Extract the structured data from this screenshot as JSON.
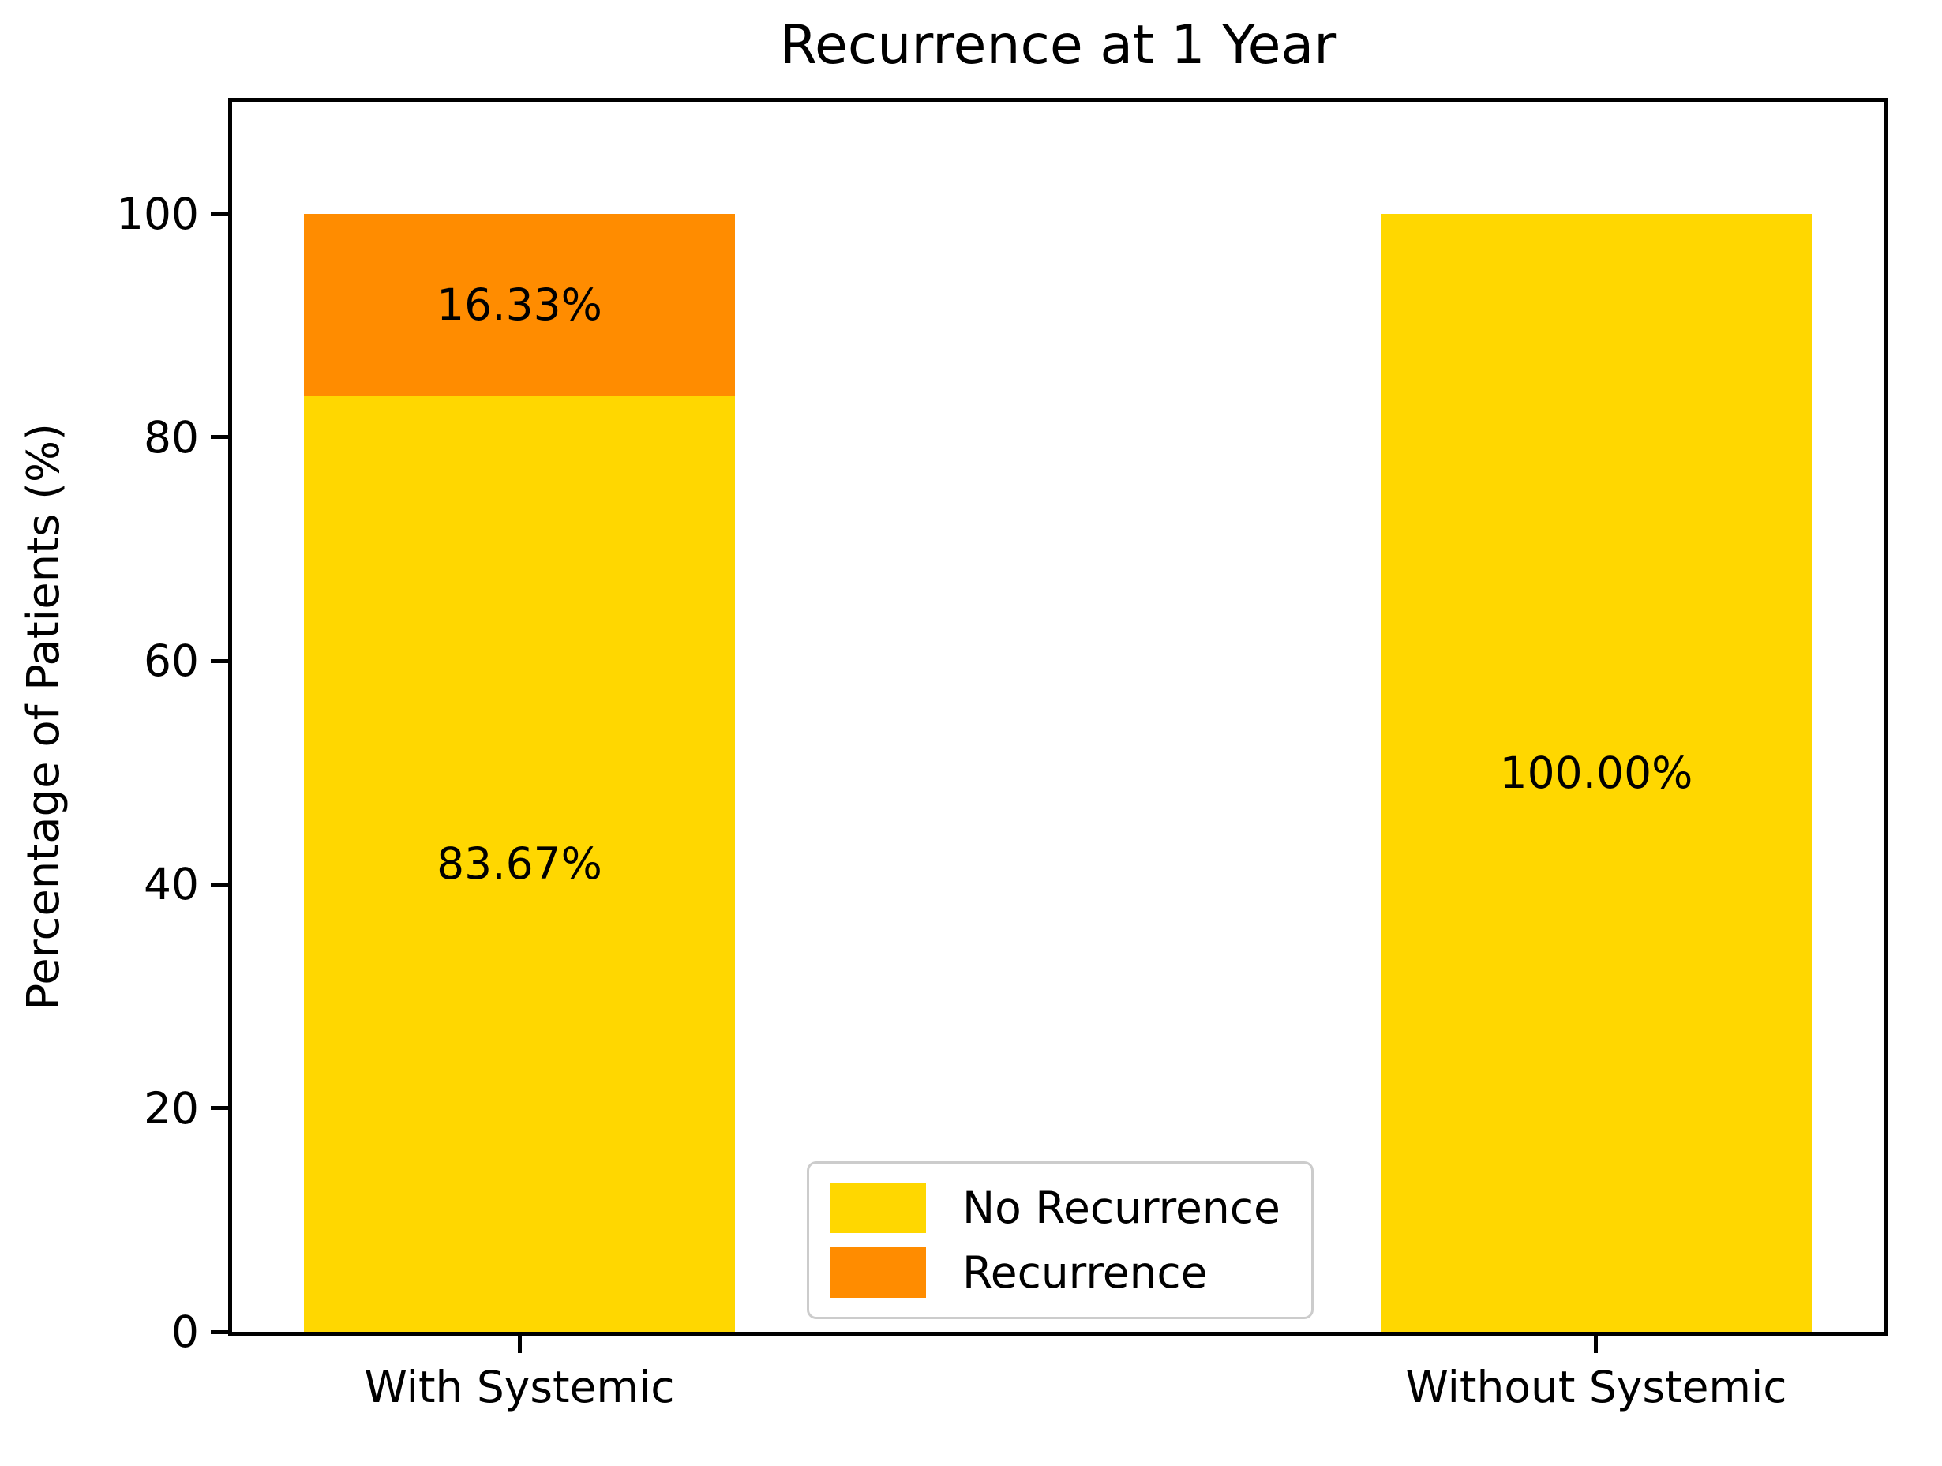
{
  "chart_data": {
    "type": "bar",
    "stacked": true,
    "title": "Recurrence at 1 Year",
    "xlabel": "",
    "ylabel": "Percentage of Patients (%)",
    "categories": [
      "With Systemic",
      "Without Systemic"
    ],
    "series": [
      {
        "name": "No Recurrence",
        "color": "#FFD700",
        "values": [
          83.67,
          100.0
        ],
        "labels": [
          "83.67%",
          "100.00%"
        ]
      },
      {
        "name": "Recurrence",
        "color": "#FF8C00",
        "values": [
          16.33,
          0.0
        ],
        "labels": [
          "16.33%",
          ""
        ]
      }
    ],
    "yticks": [
      0,
      20,
      40,
      60,
      80,
      100
    ],
    "ylim": [
      0,
      110
    ],
    "grid": false,
    "legend": {
      "position": "lower center inside plot",
      "border_color": "#cccccc",
      "background": "#ffffff"
    },
    "layout": {
      "bar_centers_pct": [
        17.4,
        82.6
      ],
      "bar_width_pct": 26.1
    },
    "colors": {
      "axis": "#000000",
      "text": "#000000",
      "figure_background": "#ffffff"
    }
  }
}
